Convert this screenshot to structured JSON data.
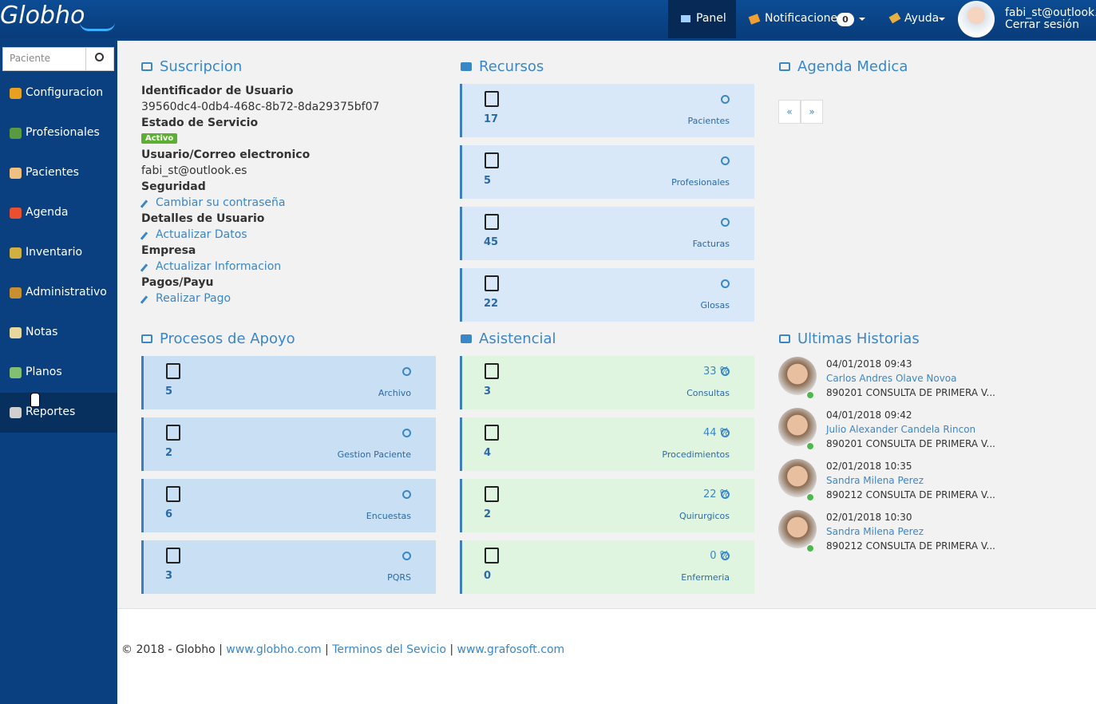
{
  "header": {
    "logo": "Globho",
    "nav": {
      "panel": "Panel",
      "notifications": "Notificaciones",
      "notifications_count": "0",
      "help": "Ayuda"
    },
    "user": {
      "email": "fabi_st@outlook.es",
      "logout": "Cerrar sesión"
    }
  },
  "sidebar": {
    "search_placeholder": "Paciente",
    "menu": [
      "Configuracion",
      "Profesionales",
      "Pacientes",
      "Agenda",
      "Inventario",
      "Administrativo",
      "Notas",
      "Planos",
      "Reportes"
    ]
  },
  "suscripcion": {
    "title": "Suscripcion",
    "fields": [
      {
        "label": "Identificador de Usuario",
        "value": "39560dc4-0db4-468c-8b72-8da29375bf07"
      },
      {
        "label": "Estado de Servicio",
        "value": "Activo"
      },
      {
        "label": "Usuario/Correo electronico",
        "value": "fabi_st@outlook.es"
      },
      {
        "label": "Seguridad",
        "value": "Cambiar su contraseña"
      },
      {
        "label": "Detalles de Usuario",
        "value": "Actualizar Datos"
      },
      {
        "label": "Empresa",
        "value": "Actualizar Informacion"
      },
      {
        "label": "Pagos/Payu",
        "value": "Realizar Pago"
      }
    ]
  },
  "recursos": {
    "title": "Recursos",
    "cards": [
      {
        "count": "17",
        "label": "Pacientes"
      },
      {
        "count": "5",
        "label": "Profesionales"
      },
      {
        "count": "45",
        "label": "Facturas"
      },
      {
        "count": "22",
        "label": "Glosas"
      }
    ]
  },
  "agenda": {
    "title": "Agenda Medica",
    "pager": [
      "«",
      "»"
    ]
  },
  "procesos": {
    "title": "Procesos de Apoyo",
    "cards": [
      {
        "count": "5",
        "label": "Archivo"
      },
      {
        "count": "2",
        "label": "Gestion Paciente"
      },
      {
        "count": "6",
        "label": "Encuestas"
      },
      {
        "count": "3",
        "label": "PQRS"
      }
    ]
  },
  "asistencial": {
    "title": "Asistencial",
    "cards": [
      {
        "count": "3",
        "percent": "33 %",
        "label": "Consultas"
      },
      {
        "count": "4",
        "percent": "44 %",
        "label": "Procedimientos"
      },
      {
        "count": "2",
        "percent": "22 %",
        "label": "Quirurgicos"
      },
      {
        "count": "0",
        "percent": "0 %",
        "label": "Enfermeria"
      }
    ]
  },
  "historias": {
    "title": "Ultimas Historias",
    "items": [
      {
        "date": "04/01/2018 09:43",
        "name": "Carlos Andres Olave Novoa",
        "description": "890201 CONSULTA DE PRIMERA V..."
      },
      {
        "date": "04/01/2018 09:42",
        "name": "Julio Alexander Candela Rincon",
        "description": "890201 CONSULTA DE PRIMERA V..."
      },
      {
        "date": "02/01/2018 10:35",
        "name": "Sandra Milena Perez",
        "description": "890212 CONSULTA DE PRIMERA V..."
      },
      {
        "date": "02/01/2018 10:30",
        "name": "Sandra Milena Perez",
        "description": "890212 CONSULTA DE PRIMERA V..."
      }
    ]
  },
  "footer": {
    "copyright": "© 2018 - Globho",
    "separator": "|",
    "links": [
      "www.globho.com",
      "Terminos del Sevicio",
      "www.grafosoft.com"
    ]
  }
}
